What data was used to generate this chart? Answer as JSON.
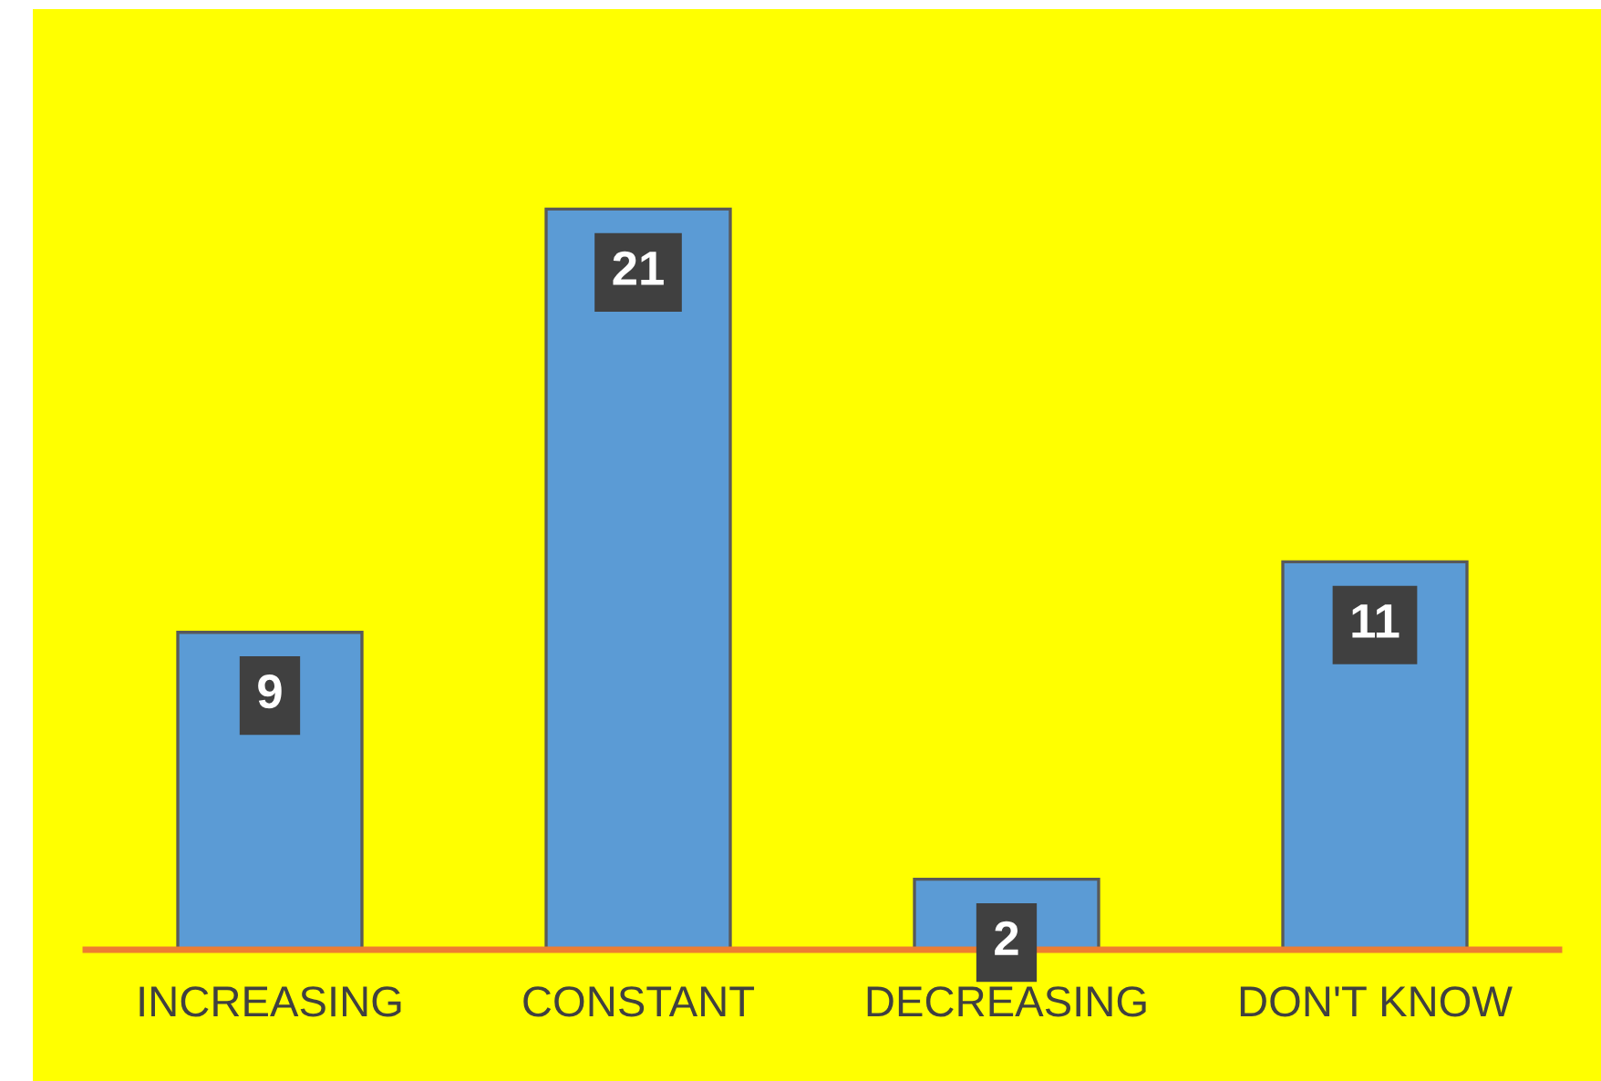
{
  "chart_data": {
    "type": "bar",
    "categories": [
      "INCREASING",
      "CONSTANT",
      "DECREASING",
      "DON'T KNOW"
    ],
    "values": [
      9,
      21,
      2,
      11
    ],
    "color": "#5b9bd5",
    "data_labels": true,
    "grid": false,
    "legend": false
  }
}
